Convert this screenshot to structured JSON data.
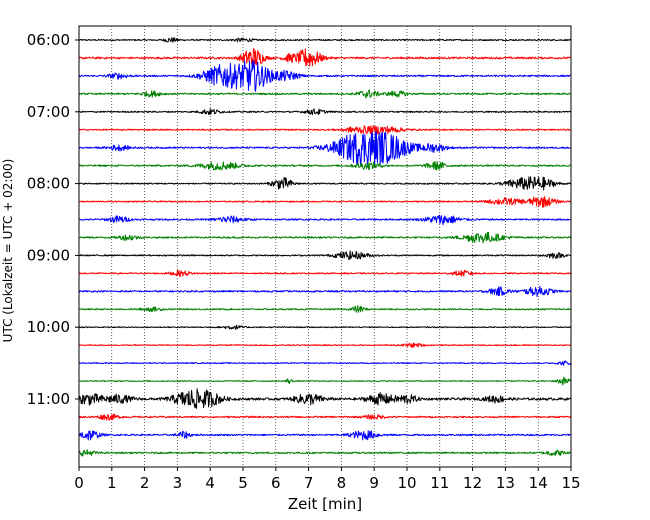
{
  "chart_data": {
    "type": "line",
    "title": "",
    "xlabel": "Zeit  [min]",
    "ylabel": "UTC (Lokalzeit = UTC + 02:00)",
    "xlim": [
      0,
      15
    ],
    "x_ticks": [
      0,
      1,
      2,
      3,
      4,
      5,
      6,
      7,
      8,
      9,
      10,
      11,
      12,
      13,
      14,
      15
    ],
    "y_ticks": [
      "06:00",
      "07:00",
      "08:00",
      "09:00",
      "10:00",
      "11:00"
    ],
    "grid": "vertical dotted lines at each minute",
    "trace_colors": [
      "#000000",
      "#ff0000",
      "#0000ff",
      "#008000"
    ],
    "trace_interval_minutes": 15,
    "traces": [
      {
        "start": "06:00",
        "color": "#000000",
        "base": 0.1,
        "events": [
          {
            "t": 2.8,
            "amp": 0.35,
            "w": 0.2
          },
          {
            "t": 5.0,
            "amp": 0.25,
            "w": 0.3
          }
        ]
      },
      {
        "start": "06:15",
        "color": "#ff0000",
        "base": 0.15,
        "events": [
          {
            "t": 5.3,
            "amp": 1.6,
            "w": 0.3
          },
          {
            "t": 7.0,
            "amp": 1.5,
            "w": 0.35
          },
          {
            "t": 6.4,
            "amp": 0.5,
            "w": 0.2
          }
        ]
      },
      {
        "start": "06:30",
        "color": "#0000ff",
        "base": 0.12,
        "events": [
          {
            "t": 4.4,
            "amp": 1.7,
            "w": 0.6
          },
          {
            "t": 5.3,
            "amp": 2.2,
            "w": 0.5
          },
          {
            "t": 6.3,
            "amp": 0.7,
            "w": 0.4
          },
          {
            "t": 1.2,
            "amp": 0.4,
            "w": 0.3
          }
        ]
      },
      {
        "start": "06:45",
        "color": "#008000",
        "base": 0.12,
        "events": [
          {
            "t": 2.2,
            "amp": 0.4,
            "w": 0.3
          },
          {
            "t": 8.8,
            "amp": 0.6,
            "w": 0.3
          },
          {
            "t": 9.7,
            "amp": 0.4,
            "w": 0.3
          }
        ]
      },
      {
        "start": "07:00",
        "color": "#000000",
        "base": 0.1,
        "events": [
          {
            "t": 4.0,
            "amp": 0.4,
            "w": 0.3
          },
          {
            "t": 7.2,
            "amp": 0.4,
            "w": 0.3
          }
        ]
      },
      {
        "start": "07:15",
        "color": "#ff0000",
        "base": 0.1,
        "events": [
          {
            "t": 9.3,
            "amp": 0.5,
            "w": 0.6
          },
          {
            "t": 8.5,
            "amp": 0.4,
            "w": 0.5
          }
        ]
      },
      {
        "start": "07:30",
        "color": "#0000ff",
        "base": 0.12,
        "events": [
          {
            "t": 8.7,
            "amp": 2.6,
            "w": 0.9
          },
          {
            "t": 9.6,
            "amp": 1.0,
            "w": 0.6
          },
          {
            "t": 10.8,
            "amp": 0.6,
            "w": 0.4
          },
          {
            "t": 1.2,
            "amp": 0.4,
            "w": 0.3
          }
        ]
      },
      {
        "start": "07:45",
        "color": "#008000",
        "base": 0.12,
        "events": [
          {
            "t": 4.3,
            "amp": 0.6,
            "w": 0.6
          },
          {
            "t": 8.8,
            "amp": 0.5,
            "w": 0.4
          },
          {
            "t": 10.9,
            "amp": 0.6,
            "w": 0.3
          }
        ]
      },
      {
        "start": "08:00",
        "color": "#000000",
        "base": 0.1,
        "events": [
          {
            "t": 6.2,
            "amp": 0.9,
            "w": 0.3
          },
          {
            "t": 13.5,
            "amp": 0.8,
            "w": 0.5
          },
          {
            "t": 14.1,
            "amp": 0.8,
            "w": 0.4
          }
        ]
      },
      {
        "start": "08:15",
        "color": "#ff0000",
        "base": 0.1,
        "events": [
          {
            "t": 13.0,
            "amp": 0.5,
            "w": 0.5
          },
          {
            "t": 14.1,
            "amp": 0.8,
            "w": 0.4
          }
        ]
      },
      {
        "start": "08:30",
        "color": "#0000ff",
        "base": 0.12,
        "events": [
          {
            "t": 1.2,
            "amp": 0.5,
            "w": 0.3
          },
          {
            "t": 4.6,
            "amp": 0.5,
            "w": 0.4
          },
          {
            "t": 11.1,
            "amp": 0.7,
            "w": 0.5
          }
        ]
      },
      {
        "start": "08:45",
        "color": "#008000",
        "base": 0.12,
        "events": [
          {
            "t": 1.5,
            "amp": 0.4,
            "w": 0.3
          },
          {
            "t": 12.3,
            "amp": 0.8,
            "w": 0.6
          }
        ]
      },
      {
        "start": "09:00",
        "color": "#000000",
        "base": 0.1,
        "events": [
          {
            "t": 8.3,
            "amp": 0.6,
            "w": 0.5
          },
          {
            "t": 14.5,
            "amp": 0.4,
            "w": 0.3
          }
        ]
      },
      {
        "start": "09:15",
        "color": "#ff0000",
        "base": 0.1,
        "events": [
          {
            "t": 3.1,
            "amp": 0.4,
            "w": 0.3
          },
          {
            "t": 11.7,
            "amp": 0.4,
            "w": 0.3
          }
        ]
      },
      {
        "start": "09:30",
        "color": "#0000ff",
        "base": 0.12,
        "events": [
          {
            "t": 12.8,
            "amp": 0.6,
            "w": 0.3
          },
          {
            "t": 14.0,
            "amp": 0.7,
            "w": 0.4
          }
        ]
      },
      {
        "start": "09:45",
        "color": "#008000",
        "base": 0.1,
        "events": [
          {
            "t": 8.5,
            "amp": 0.5,
            "w": 0.2
          },
          {
            "t": 2.2,
            "amp": 0.3,
            "w": 0.3
          }
        ]
      },
      {
        "start": "10:00",
        "color": "#000000",
        "base": 0.08,
        "events": [
          {
            "t": 4.7,
            "amp": 0.3,
            "w": 0.3
          }
        ]
      },
      {
        "start": "10:15",
        "color": "#ff0000",
        "base": 0.08,
        "events": [
          {
            "t": 10.2,
            "amp": 0.3,
            "w": 0.3
          }
        ]
      },
      {
        "start": "10:30",
        "color": "#0000ff",
        "base": 0.08,
        "events": [
          {
            "t": 14.8,
            "amp": 0.3,
            "w": 0.2
          }
        ]
      },
      {
        "start": "10:45",
        "color": "#008000",
        "base": 0.08,
        "events": [
          {
            "t": 6.4,
            "amp": 0.4,
            "w": 0.1
          },
          {
            "t": 14.8,
            "amp": 0.6,
            "w": 0.2
          }
        ]
      },
      {
        "start": "11:00",
        "color": "#000000",
        "base": 0.18,
        "events": [
          {
            "t": 0.3,
            "amp": 0.8,
            "w": 0.4
          },
          {
            "t": 1.2,
            "amp": 0.6,
            "w": 0.4
          },
          {
            "t": 3.4,
            "amp": 1.3,
            "w": 0.5
          },
          {
            "t": 4.0,
            "amp": 0.8,
            "w": 0.4
          },
          {
            "t": 7.0,
            "amp": 0.8,
            "w": 0.4
          },
          {
            "t": 9.2,
            "amp": 0.8,
            "w": 0.4
          },
          {
            "t": 10.0,
            "amp": 0.6,
            "w": 0.3
          },
          {
            "t": 12.7,
            "amp": 0.5,
            "w": 0.3
          }
        ]
      },
      {
        "start": "11:15",
        "color": "#ff0000",
        "base": 0.12,
        "events": [
          {
            "t": 0.9,
            "amp": 0.4,
            "w": 0.3
          },
          {
            "t": 9.0,
            "amp": 0.3,
            "w": 0.3
          }
        ]
      },
      {
        "start": "11:30",
        "color": "#0000ff",
        "base": 0.12,
        "events": [
          {
            "t": 0.3,
            "amp": 0.8,
            "w": 0.3
          },
          {
            "t": 3.2,
            "amp": 0.5,
            "w": 0.2
          },
          {
            "t": 8.7,
            "amp": 0.7,
            "w": 0.4
          }
        ]
      },
      {
        "start": "11:45",
        "color": "#008000",
        "base": 0.12,
        "events": [
          {
            "t": 0.2,
            "amp": 0.4,
            "w": 0.3
          },
          {
            "t": 14.5,
            "amp": 0.4,
            "w": 0.3
          }
        ]
      }
    ]
  }
}
